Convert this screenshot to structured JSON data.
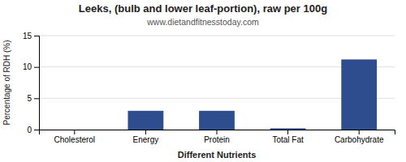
{
  "chart_data": {
    "type": "bar",
    "title": "Leeks, (bulb and lower leaf-portion), raw per 100g",
    "subtitle": "www.dietandfitnesstoday.com",
    "xlabel": "Different Nutrients",
    "ylabel": "Percentage of RDH (%)",
    "categories": [
      "Cholesterol",
      "Energy",
      "Protein",
      "Total Fat",
      "Carbohydrate"
    ],
    "values": [
      0,
      3.0,
      3.0,
      0.2,
      11.2
    ],
    "color": "#2e4d8e",
    "ylim": [
      0,
      15
    ],
    "yticks": [
      0,
      5,
      10,
      15
    ],
    "grid": true
  }
}
